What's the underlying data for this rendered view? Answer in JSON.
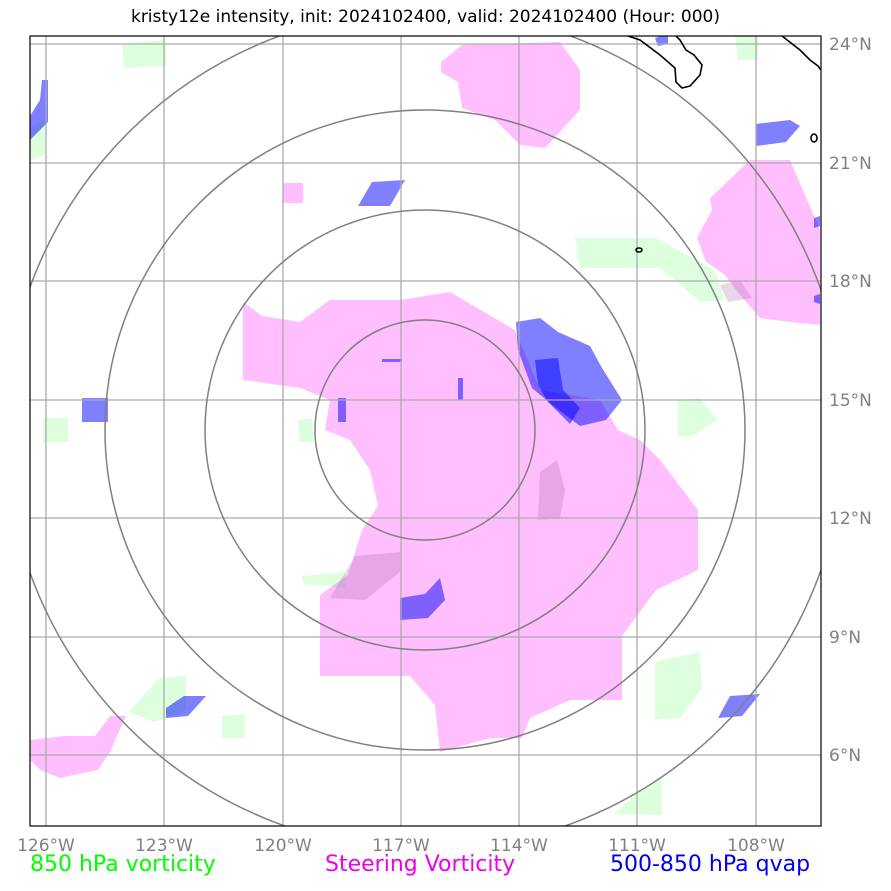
{
  "title": "kristy12e intensity, init: 2024102400, valid: 2024102400 (Hour: 000)",
  "lon_ticks": [
    "126°W",
    "123°W",
    "120°W",
    "117°W",
    "114°W",
    "111°W",
    "108°W"
  ],
  "lat_ticks": [
    "24°N",
    "21°N",
    "18°N",
    "15°N",
    "12°N",
    "9°N",
    "6°N"
  ],
  "legend": {
    "vort850": "850 hPa vorticity",
    "steering": "Steering Vorticity",
    "qvap": "500-850 hPa qvap"
  },
  "colors": {
    "vort850": "#00ff00",
    "steering": "#ff00ff",
    "qvap": "#0000ff",
    "grid": "#aaaaaa",
    "range_rings": "#808080",
    "coastline": "#000000"
  },
  "map_extent": {
    "lon_min": -126.4,
    "lon_max": -106.2,
    "lat_min": 4.3,
    "lat_max": 24.2
  },
  "storm_center": {
    "lon": -116.5,
    "lat": 14.3
  },
  "range_ring_count": 4
}
